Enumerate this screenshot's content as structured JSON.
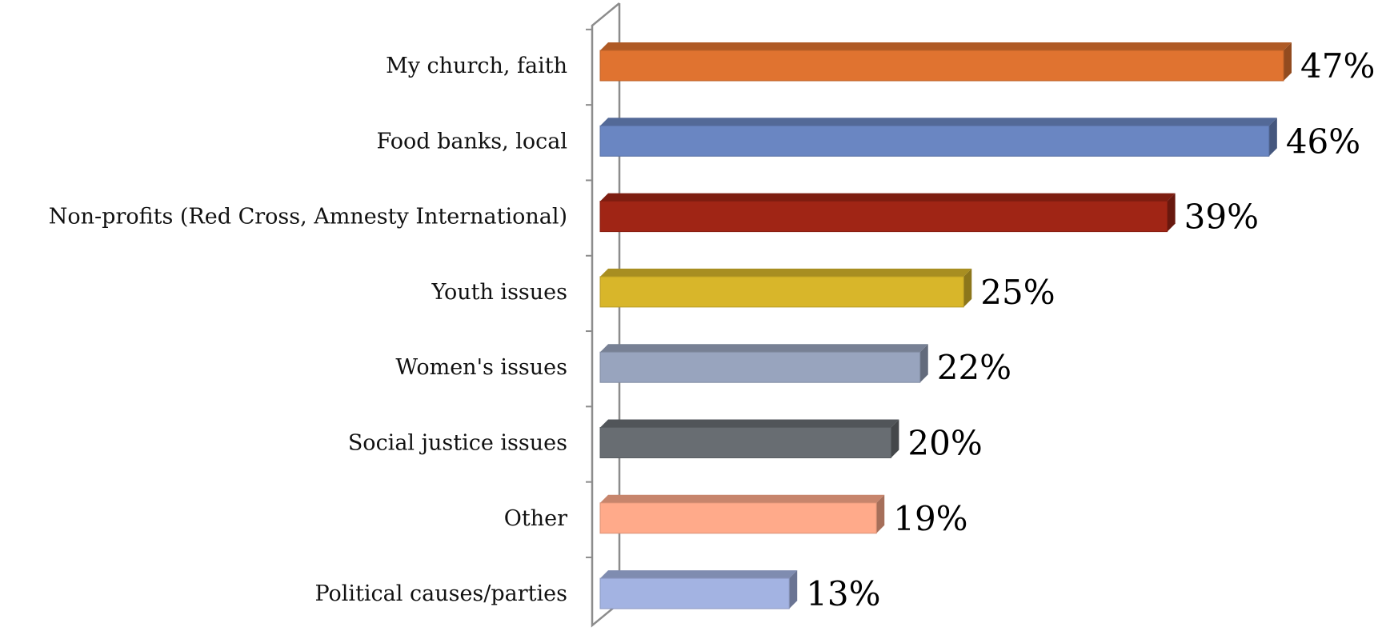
{
  "chart_data": {
    "type": "bar",
    "orientation": "horizontal",
    "style": "3d",
    "categories": [
      "My church, faith",
      "Food banks, local",
      "Non-profits (Red Cross, Amnesty International)",
      "Youth issues",
      "Women's issues",
      "Social justice issues",
      "Other",
      "Political causes/parties"
    ],
    "values": [
      47,
      46,
      39,
      25,
      22,
      20,
      19,
      13
    ],
    "value_labels": [
      "47%",
      "46%",
      "39%",
      "25%",
      "22%",
      "20%",
      "19%",
      "13%"
    ],
    "colors": [
      "#E07330",
      "#6A86C2",
      "#A02515",
      "#D8B62A",
      "#98A4BE",
      "#686D72",
      "#FFAA8A",
      "#A3B3E2"
    ],
    "xlim": [
      0,
      47
    ],
    "title": "",
    "xlabel": "",
    "ylabel": "",
    "grid": false,
    "legend": "none"
  }
}
